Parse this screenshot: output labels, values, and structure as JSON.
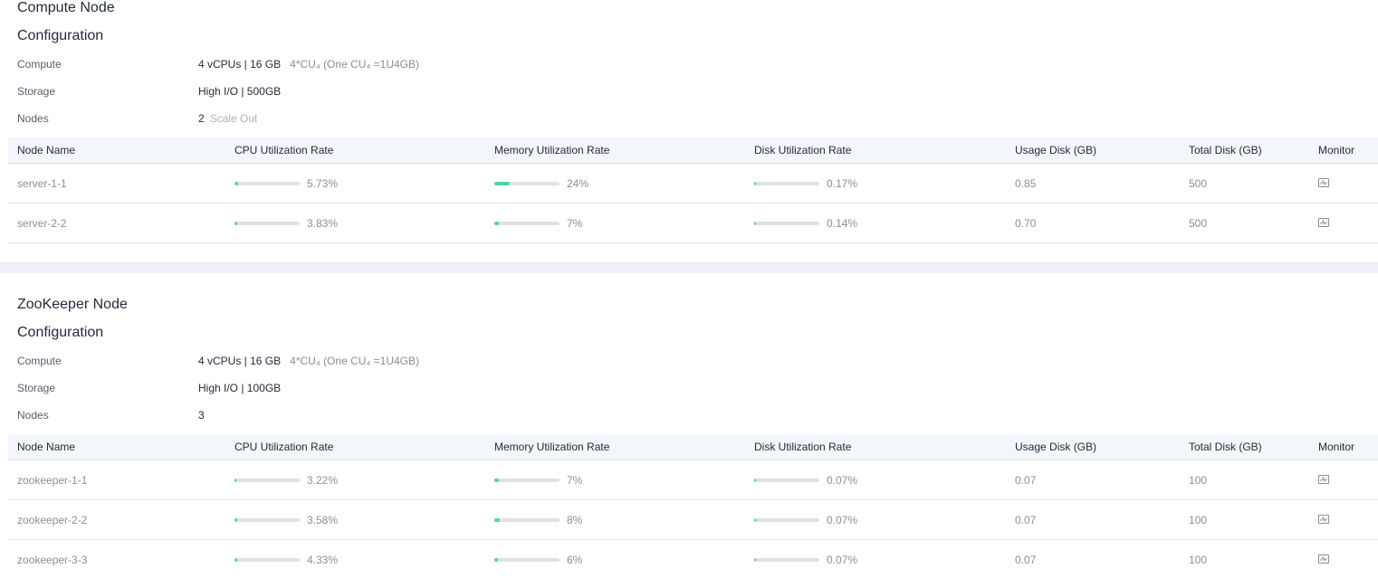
{
  "compute": {
    "title": "Compute Node",
    "config_title": "Configuration",
    "config": {
      "compute_label": "Compute",
      "compute_value": "4 vCPUs | 16 GB",
      "compute_extra": "4*CU₄ (One CU₄ =1U4GB)",
      "storage_label": "Storage",
      "storage_value": "High I/O | 500GB",
      "nodes_label": "Nodes",
      "nodes_value": "2",
      "scale_out": "Scale Out"
    },
    "columns": [
      "Node Name",
      "CPU Utilization Rate",
      "Memory Utilization Rate",
      "Disk Utilization Rate",
      "Usage Disk (GB)",
      "Total Disk (GB)",
      "Monitor"
    ],
    "rows": [
      {
        "name": "server-1-1",
        "cpu": "5.73%",
        "cpu_pct": 5.73,
        "mem": "24%",
        "mem_pct": 24,
        "disk": "0.17%",
        "disk_pct": 0.17,
        "usage": "0.85",
        "total": "500"
      },
      {
        "name": "server-2-2",
        "cpu": "3.83%",
        "cpu_pct": 3.83,
        "mem": "7%",
        "mem_pct": 7,
        "disk": "0.14%",
        "disk_pct": 0.14,
        "usage": "0.70",
        "total": "500"
      }
    ]
  },
  "zookeeper": {
    "title": "ZooKeeper Node",
    "config_title": "Configuration",
    "config": {
      "compute_label": "Compute",
      "compute_value": "4 vCPUs | 16 GB",
      "compute_extra": "4*CU₄ (One CU₄ =1U4GB)",
      "storage_label": "Storage",
      "storage_value": "High I/O | 100GB",
      "nodes_label": "Nodes",
      "nodes_value": "3"
    },
    "columns": [
      "Node Name",
      "CPU Utilization Rate",
      "Memory Utilization Rate",
      "Disk Utilization Rate",
      "Usage Disk (GB)",
      "Total Disk (GB)",
      "Monitor"
    ],
    "rows": [
      {
        "name": "zookeeper-1-1",
        "cpu": "3.22%",
        "cpu_pct": 3.22,
        "mem": "7%",
        "mem_pct": 7,
        "disk": "0.07%",
        "disk_pct": 0.07,
        "usage": "0.07",
        "total": "100"
      },
      {
        "name": "zookeeper-2-2",
        "cpu": "3.58%",
        "cpu_pct": 3.58,
        "mem": "8%",
        "mem_pct": 8,
        "disk": "0.07%",
        "disk_pct": 0.07,
        "usage": "0.07",
        "total": "100"
      },
      {
        "name": "zookeeper-3-3",
        "cpu": "4.33%",
        "cpu_pct": 4.33,
        "mem": "6%",
        "mem_pct": 6,
        "disk": "0.07%",
        "disk_pct": 0.07,
        "usage": "0.07",
        "total": "100"
      }
    ]
  },
  "icons": {
    "monitor": "monitor-chart-icon"
  },
  "colors": {
    "bar_fill": "#50d4ab",
    "bar_track": "#dfe1e6",
    "header_bg": "#f3f6fb",
    "divider": "#eef0f5"
  }
}
